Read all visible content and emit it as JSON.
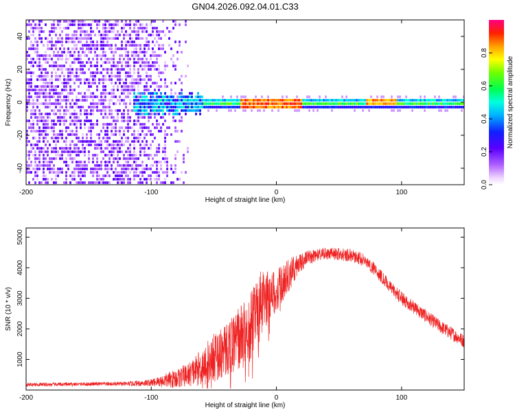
{
  "title": "GN04.2026.092.04.01.C33",
  "colors": {
    "snr_line": "#ee2222",
    "axis": "#000000",
    "background": "#ffffff"
  },
  "chart_data": [
    {
      "type": "heatmap",
      "title": "GN04.2026.092.04.01.C33",
      "xlabel": "Height of straight line (km)",
      "ylabel": "Frequency (Hz)",
      "xlim": [
        -200,
        150
      ],
      "ylim": [
        -50,
        50
      ],
      "xticks": [
        -200,
        -100,
        0,
        100
      ],
      "yticks": [
        -40,
        -20,
        0,
        20,
        40
      ],
      "colorbar": {
        "label": "Normalized spectral amplitude",
        "range": [
          0,
          1
        ],
        "ticks": [
          "0.0",
          "0.2",
          "0.4",
          "0.6",
          "0.8"
        ],
        "colormap": "rainbow (white, violet, blue, cyan, green, yellow, red, magenta)"
      },
      "features": [
        {
          "name": "noise region",
          "x_range": [
            -200,
            -70
          ],
          "freq_range": [
            -50,
            50
          ],
          "amplitude": 0.15
        },
        {
          "name": "signal band onset",
          "x_range": [
            -115,
            -60
          ],
          "center_freq": 0,
          "half_width_hz": 6,
          "amplitude": 0.45
        },
        {
          "name": "narrow carrier band",
          "x_range": [
            -60,
            150
          ],
          "center_freq": 0.5,
          "half_width_hz": 3,
          "amplitude": 0.7
        },
        {
          "name": "peak segment",
          "x_range": [
            -30,
            20
          ],
          "center_freq": 0,
          "amplitude": 0.95
        },
        {
          "name": "peak segment",
          "x_range": [
            70,
            95
          ],
          "center_freq": 1.5,
          "amplitude": 0.9
        }
      ]
    },
    {
      "type": "line",
      "xlabel": "Height of straight line (km)",
      "ylabel": "SNR (10 * v/v)",
      "xlim": [
        -200,
        150
      ],
      "ylim": [
        0,
        5300
      ],
      "xticks": [
        -200,
        -100,
        0,
        100
      ],
      "yticks": [
        1000,
        2000,
        3000,
        4000,
        5000
      ],
      "series": [
        {
          "name": "SNR",
          "x": [
            -200,
            -180,
            -160,
            -140,
            -120,
            -100,
            -90,
            -80,
            -70,
            -60,
            -50,
            -40,
            -30,
            -20,
            -15,
            -10,
            -5,
            0,
            5,
            10,
            15,
            20,
            30,
            40,
            50,
            60,
            70,
            80,
            90,
            100,
            110,
            120,
            130,
            140,
            150
          ],
          "y": [
            180,
            180,
            190,
            200,
            200,
            240,
            300,
            380,
            500,
            750,
            1050,
            1350,
            1700,
            2100,
            2600,
            2900,
            3100,
            3250,
            3500,
            3750,
            4000,
            4200,
            4400,
            4450,
            4450,
            4400,
            4250,
            3900,
            3400,
            3000,
            2700,
            2400,
            2100,
            1850,
            1600
          ],
          "noise_amplitude": [
            60,
            60,
            60,
            60,
            70,
            120,
            220,
            320,
            400,
            600,
            800,
            900,
            1000,
            1150,
            1300,
            1000,
            800,
            700,
            600,
            550,
            400,
            300,
            220,
            200,
            200,
            220,
            220,
            220,
            220,
            220,
            220,
            220,
            220,
            220,
            220
          ]
        }
      ]
    }
  ]
}
